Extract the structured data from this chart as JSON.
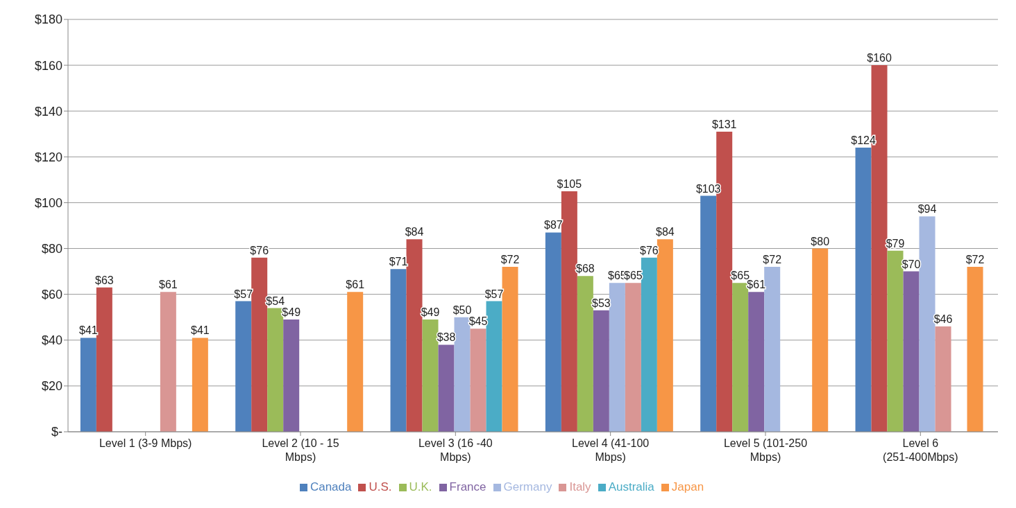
{
  "chart_data": {
    "type": "bar",
    "categories": [
      "Level 1 (3-9 Mbps)",
      "Level 2 (10 - 15 Mbps)",
      "Level 3 (16 -40 Mbps)",
      "Level 4 (41-100 Mbps)",
      "Level 5 (101-250 Mbps)",
      "Level 6 (251-400Mbps)"
    ],
    "series": [
      {
        "name": "Canada",
        "color": "#4f81bd",
        "values": [
          41,
          57,
          71,
          87,
          103,
          124
        ],
        "value_labels": [
          "$41",
          "$57",
          "$71",
          "$87",
          "$103",
          "$124"
        ]
      },
      {
        "name": "U.S.",
        "color": "#c0504d",
        "values": [
          63,
          76,
          84,
          105,
          131,
          160
        ],
        "value_labels": [
          "$63",
          "$76",
          "$84",
          "$105",
          "$131",
          "$160"
        ]
      },
      {
        "name": "U.K.",
        "color": "#9bbb59",
        "values": [
          0,
          54,
          49,
          68,
          65,
          79
        ],
        "value_labels": [
          null,
          "$54",
          "$49",
          "$68",
          "$65",
          "$79"
        ]
      },
      {
        "name": "France",
        "color": "#8064a2",
        "values": [
          0,
          49,
          38,
          53,
          61,
          70
        ],
        "value_labels": [
          null,
          "$49",
          "$38",
          "$53",
          "$61",
          "$70"
        ]
      },
      {
        "name": "Germany",
        "color": "#a5b8e0",
        "values": [
          0,
          0,
          50,
          65,
          72,
          94
        ],
        "value_labels": [
          null,
          null,
          "$50",
          "$65",
          "$72",
          "$94"
        ]
      },
      {
        "name": "Italy",
        "color": "#d99694",
        "values": [
          61,
          0,
          45,
          65,
          0,
          46
        ],
        "value_labels": [
          "$61",
          null,
          "$45",
          "$65",
          null,
          "$46"
        ]
      },
      {
        "name": "Australia",
        "color": "#4bacc6",
        "values": [
          0,
          0,
          57,
          76,
          0,
          0
        ],
        "value_labels": [
          null,
          null,
          "$57",
          "$76",
          null,
          null
        ]
      },
      {
        "name": "Japan",
        "color": "#f79646",
        "values": [
          41,
          61,
          72,
          84,
          80,
          72
        ],
        "value_labels": [
          "$41",
          "$61",
          "$72",
          "$84",
          "$80",
          "$72"
        ]
      }
    ],
    "ylim": [
      0,
      180
    ],
    "yticks": [
      {
        "value": 0,
        "label": "$-"
      },
      {
        "value": 20,
        "label": "$20"
      },
      {
        "value": 40,
        "label": "$40"
      },
      {
        "value": 60,
        "label": "$60"
      },
      {
        "value": 80,
        "label": "$80"
      },
      {
        "value": 100,
        "label": "$100"
      },
      {
        "value": 120,
        "label": "$120"
      },
      {
        "value": 140,
        "label": "$140"
      },
      {
        "value": 160,
        "label": "$160"
      },
      {
        "value": 180,
        "label": "$180"
      }
    ],
    "grid": "y",
    "legend": "bottom"
  }
}
